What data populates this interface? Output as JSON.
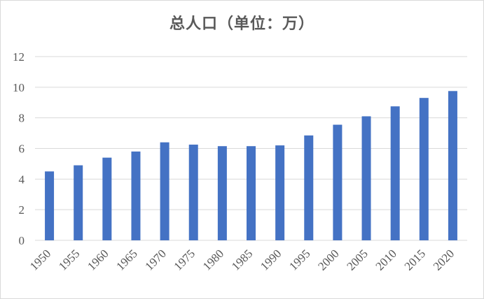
{
  "chart_data": {
    "type": "bar",
    "title": "总人口（单位：万）",
    "xlabel": "",
    "ylabel": "",
    "categories": [
      "1950",
      "1955",
      "1960",
      "1965",
      "1970",
      "1975",
      "1980",
      "1985",
      "1990",
      "1995",
      "2000",
      "2005",
      "2010",
      "2015",
      "2020"
    ],
    "values": [
      4.5,
      4.9,
      5.4,
      5.8,
      6.4,
      6.25,
      6.15,
      6.15,
      6.2,
      6.85,
      7.55,
      8.1,
      8.75,
      9.3,
      9.75
    ],
    "ylim": [
      0,
      12
    ],
    "yticks": [
      "0",
      "2",
      "4",
      "6",
      "8",
      "10",
      "12"
    ],
    "grid": true,
    "legend": "none",
    "bar_color": "#4472c4",
    "grid_color": "#d9d9d9",
    "text_color": "#595959"
  }
}
